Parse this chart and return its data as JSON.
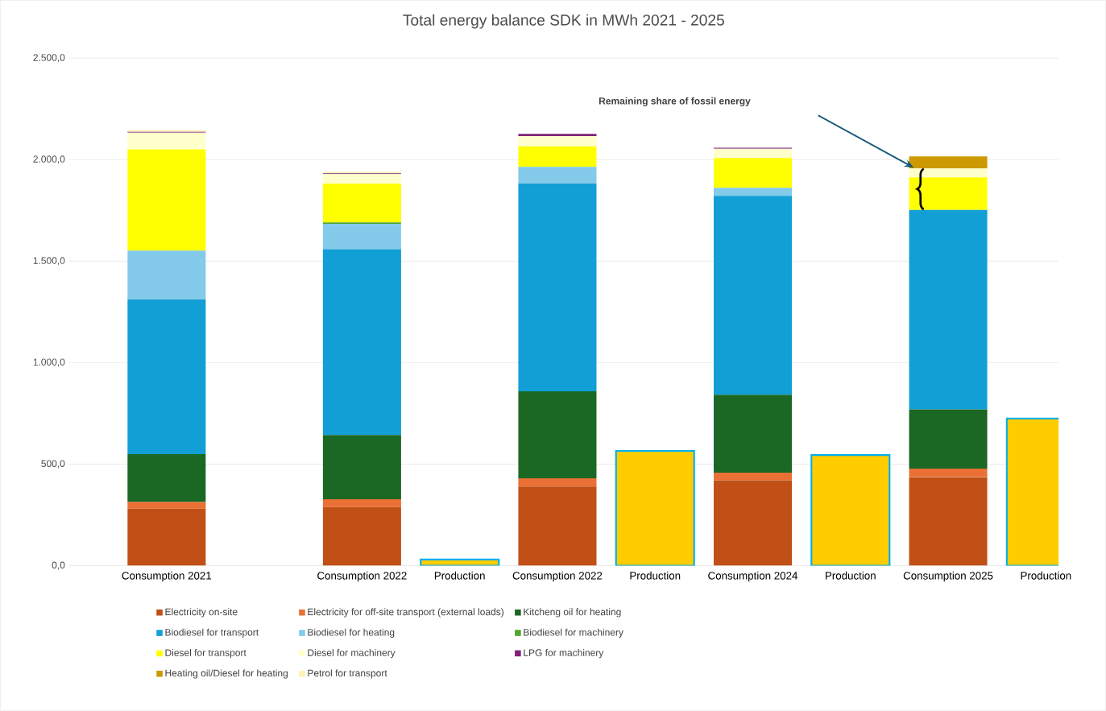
{
  "chart_data": {
    "type": "bar",
    "title": "Total energy balance SDK in MWh 2021 - 2025",
    "categories": [
      "Consumption 2021",
      null,
      "Consumption 2022",
      "Production",
      "Consumption 2022",
      "Production",
      "Consumption 2024",
      "Production",
      "Consumption 2025",
      "Production"
    ],
    "stacked": true,
    "grid": "y",
    "legend": "bottom",
    "ylim": [
      0,
      2500
    ],
    "yticks": [
      {
        "value": 0,
        "label": "0,0"
      },
      {
        "value": 500,
        "label": "500,0"
      },
      {
        "value": 1000,
        "label": "1.000,0"
      },
      {
        "value": 1500,
        "label": "1.500,0"
      },
      {
        "value": 2000,
        "label": "2.000,0"
      },
      {
        "value": 2500,
        "label": "2.500,0"
      }
    ],
    "series": [
      {
        "name": "Electricity on-site",
        "color": "#c05016",
        "values": [
          281,
          null,
          289,
          null,
          390,
          null,
          420,
          null,
          436,
          null
        ]
      },
      {
        "name": "Electricity for off-site transport (external loads)",
        "color": "#ea7035",
        "values": [
          32,
          null,
          38,
          null,
          40,
          null,
          38,
          null,
          42,
          null
        ]
      },
      {
        "name": "Kitcheng oil for heating",
        "color": "#1a6823",
        "values": [
          236,
          null,
          317,
          null,
          429,
          null,
          384,
          null,
          291,
          null
        ]
      },
      {
        "name": "Biodiesel for transport",
        "color": "#119fd6",
        "values": [
          762,
          null,
          915,
          null,
          1023,
          null,
          980,
          null,
          983,
          null
        ]
      },
      {
        "name": "Biodiesel for heating",
        "color": "#84caeb",
        "values": [
          241,
          null,
          125,
          null,
          82,
          null,
          39,
          null,
          0,
          null
        ]
      },
      {
        "name": "Biodiesel for machinery",
        "color": "#4ea72e",
        "values": [
          0,
          null,
          7,
          null,
          0,
          null,
          0,
          null,
          0,
          null
        ]
      },
      {
        "name": "Diesel for transport",
        "color": "#ffff00",
        "values": [
          499,
          null,
          191,
          null,
          102,
          null,
          147,
          null,
          161,
          null
        ]
      },
      {
        "name": "Diesel for machinery",
        "color": "#ffffcc",
        "values": [
          82,
          null,
          47,
          null,
          50,
          null,
          46,
          null,
          43,
          null
        ]
      },
      {
        "name": "LPG for machinery",
        "color": "#7e2378",
        "values": [
          4,
          null,
          4,
          null,
          11,
          null,
          5,
          null,
          0,
          null
        ]
      },
      {
        "name": "Heating oil/Diesel for heating",
        "color": "#cc9900",
        "values": [
          0,
          null,
          0,
          null,
          0,
          null,
          0,
          null,
          60,
          null
        ]
      },
      {
        "name": "Petrol for transport",
        "color": "#fff2b3",
        "values": [
          8,
          null,
          8,
          null,
          0,
          null,
          0,
          null,
          0,
          null
        ]
      },
      {
        "color": "#ffcc00",
        "values": [
          null,
          null,
          null,
          30,
          null,
          565,
          null,
          545,
          null,
          725
        ]
      }
    ],
    "annotations": [
      "Remaining share of fossil energy"
    ]
  }
}
